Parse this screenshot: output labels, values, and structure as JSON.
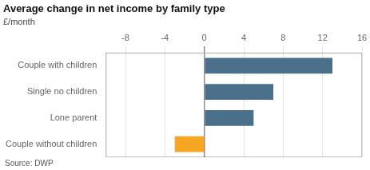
{
  "chart_data": {
    "type": "bar",
    "orientation": "horizontal",
    "title": "Average change in net income by family type",
    "subtitle": "£/month",
    "source": "Source: DWP",
    "categories": [
      "Couple without children",
      "Lone parent",
      "Single no children",
      "Couple with children"
    ],
    "values": [
      -3.0,
      5.0,
      7.0,
      13.0
    ],
    "colors": [
      "#f5a623",
      "#4a708b",
      "#4a708b",
      "#4a708b"
    ],
    "xlim": [
      -10,
      16
    ],
    "xticks": [
      -8,
      -4,
      0,
      4,
      8,
      12,
      16
    ],
    "grid": true
  }
}
